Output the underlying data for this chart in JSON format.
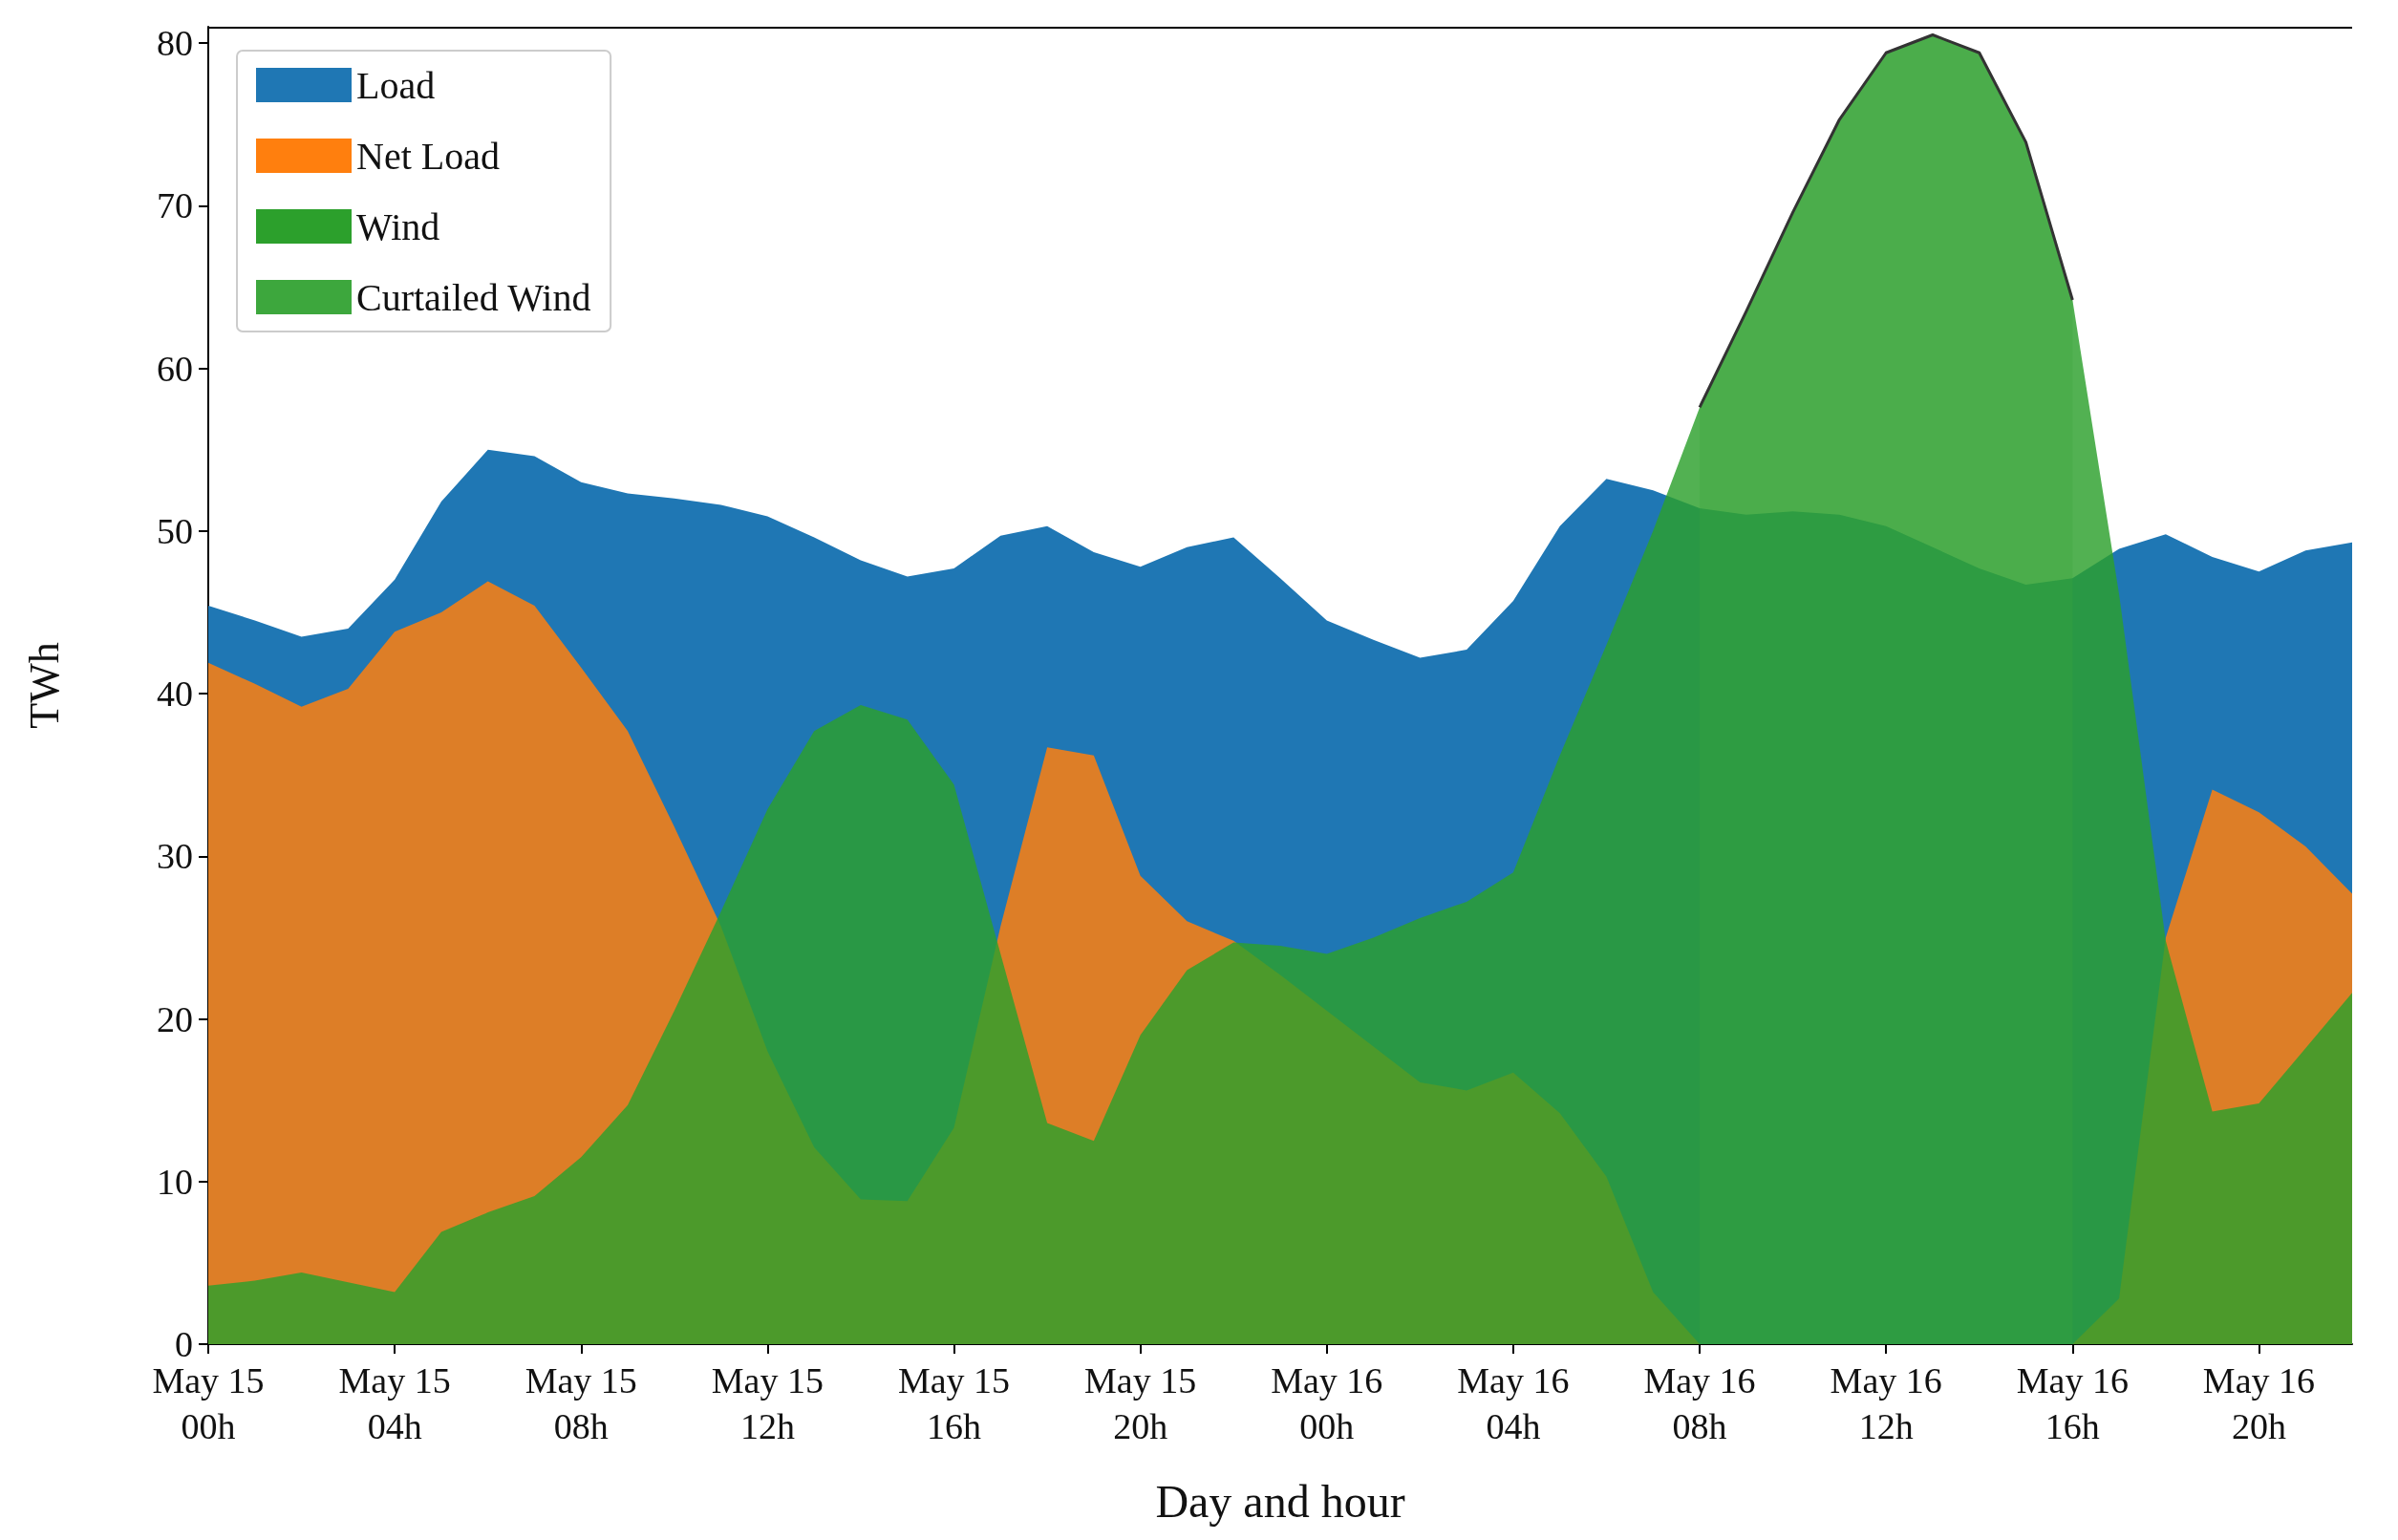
{
  "chart_data": {
    "type": "area",
    "xlabel": "Day and hour",
    "ylabel": "TWh",
    "categories": [
      "May 15\n00h",
      null,
      null,
      null,
      "May 15\n04h",
      null,
      null,
      null,
      "May 15\n08h",
      null,
      null,
      null,
      "May 15\n12h",
      null,
      null,
      null,
      "May 15\n16h",
      null,
      null,
      null,
      "May 15\n20h",
      null,
      null,
      null,
      "May 16\n00h",
      null,
      null,
      null,
      "May 16\n04h",
      null,
      null,
      null,
      "May 16\n08h",
      null,
      null,
      null,
      "May 16\n12h",
      null,
      null,
      null,
      "May 16\n16h",
      null,
      null,
      null,
      "May 16\n20h",
      null,
      null
    ],
    "series": [
      {
        "name": "Load",
        "color": "#1f77b4",
        "values": [
          45.4,
          44.5,
          43.5,
          44.0,
          47.0,
          51.8,
          55.0,
          54.6,
          53.0,
          52.3,
          52.0,
          51.6,
          50.9,
          49.6,
          48.2,
          47.2,
          47.7,
          49.7,
          50.3,
          48.7,
          47.8,
          49.0,
          49.6,
          47.1,
          44.5,
          43.3,
          42.2,
          42.7,
          45.7,
          50.3,
          53.2,
          52.5,
          51.4,
          51.0,
          51.2,
          51.0,
          50.3,
          49.0,
          47.7,
          46.7,
          47.1,
          48.9,
          49.8,
          48.4,
          47.5,
          48.8,
          49.3
        ]
      },
      {
        "name": "Net Load",
        "color": "#ff7f0e",
        "values": [
          41.9,
          40.6,
          39.2,
          40.3,
          43.8,
          45.0,
          46.9,
          45.4,
          41.6,
          37.7,
          31.8,
          25.7,
          18.0,
          12.1,
          8.9,
          8.8,
          13.3,
          25.7,
          36.7,
          36.2,
          28.8,
          26.0,
          24.8,
          22.7,
          20.5,
          18.3,
          16.1,
          15.6,
          16.7,
          14.2,
          10.3,
          3.2,
          0,
          0,
          0,
          0,
          0,
          0,
          0,
          0,
          0,
          2.8,
          25.0,
          34.1,
          32.7,
          30.6,
          27.7
        ]
      },
      {
        "name": "Wind",
        "color": "#2ca02c",
        "values": [
          3.6,
          3.9,
          4.4,
          3.8,
          3.2,
          6.9,
          8.1,
          9.1,
          11.5,
          14.7,
          20.5,
          26.6,
          32.9,
          37.7,
          39.3,
          38.4,
          34.4,
          24.0,
          13.6,
          12.5,
          19.0,
          23.0,
          24.7,
          24.5,
          24.0,
          25.0,
          26.2,
          27.2,
          29.0,
          36.2,
          43.0,
          50.0,
          57.6,
          63.5,
          69.6,
          75.3,
          79.4,
          80.5,
          79.4,
          73.9,
          64.2,
          46.1,
          24.8,
          14.3,
          14.8,
          18.2,
          21.6
        ]
      },
      {
        "name": "Curtailed Wind",
        "color": "#3da73d",
        "values": [
          null,
          null,
          null,
          null,
          null,
          null,
          null,
          null,
          null,
          null,
          null,
          null,
          null,
          null,
          null,
          null,
          null,
          null,
          null,
          null,
          null,
          null,
          null,
          null,
          null,
          null,
          null,
          null,
          null,
          null,
          null,
          null,
          57.6,
          63.5,
          69.6,
          75.3,
          79.4,
          80.5,
          79.4,
          73.9,
          64.2,
          null,
          null,
          null,
          null,
          null,
          null
        ],
        "line_style": "solid"
      }
    ],
    "ylim": [
      0,
      81
    ],
    "yticks": [
      0,
      10,
      20,
      30,
      40,
      50,
      60,
      70,
      80
    ],
    "legend": "top left"
  }
}
